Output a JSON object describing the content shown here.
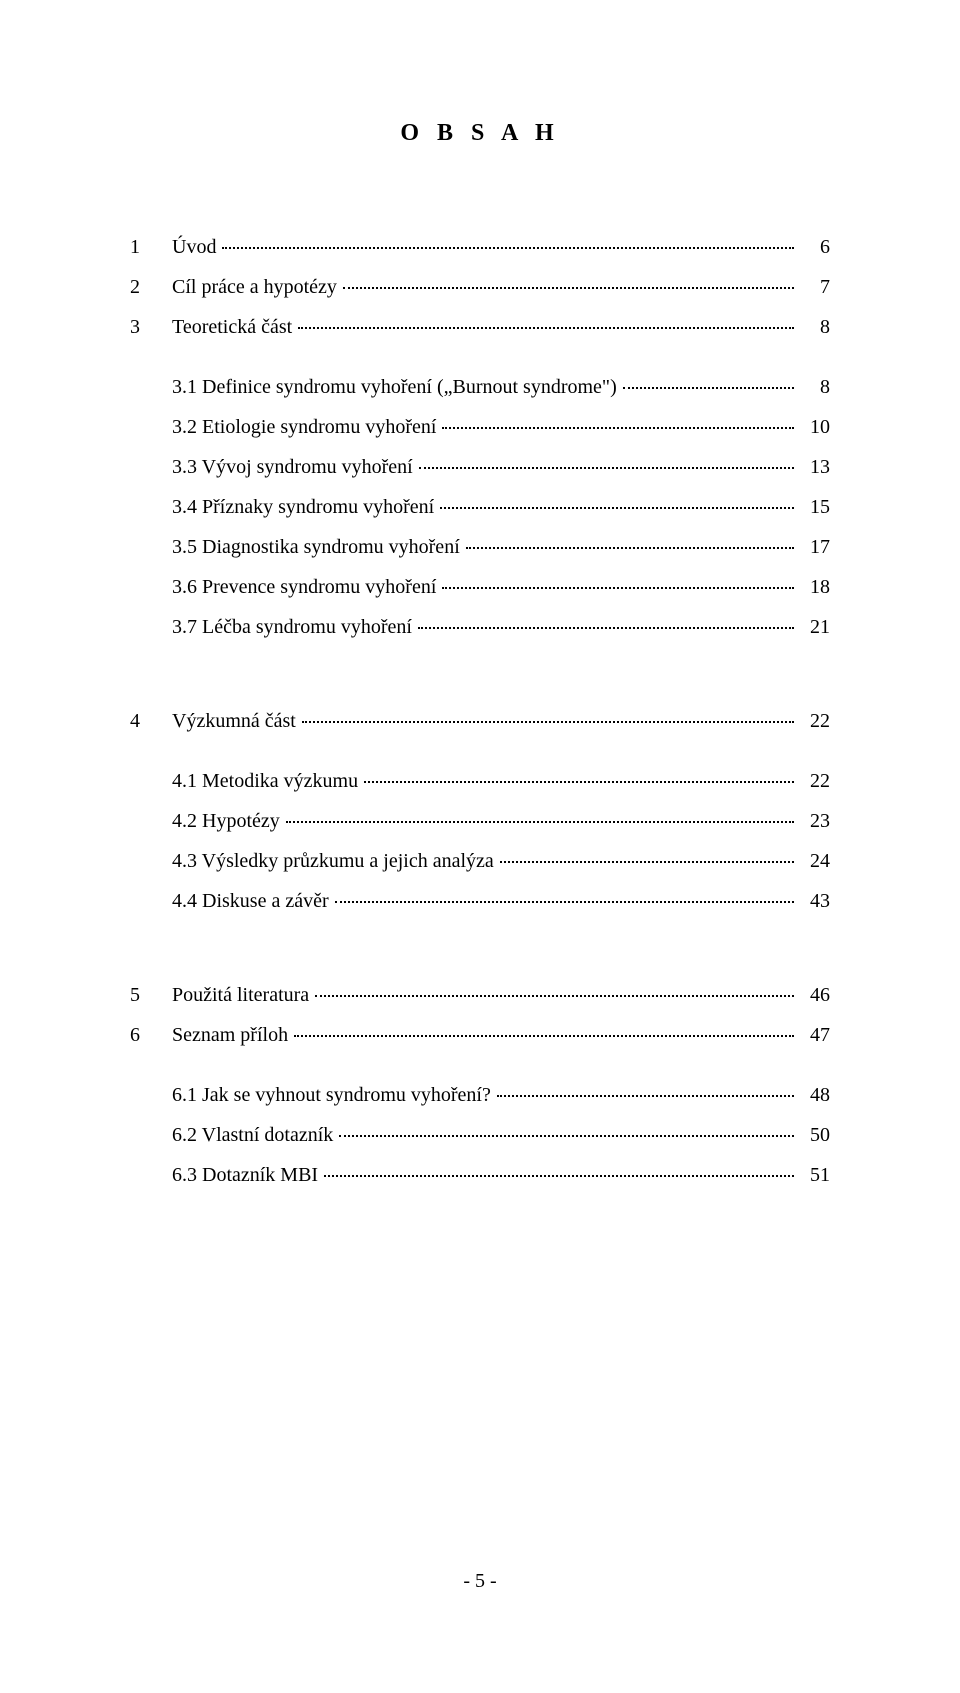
{
  "title": "O B S A H",
  "footer": "- 5 -",
  "toc": {
    "s1": {
      "num": "1",
      "label": "Úvod",
      "page": "6"
    },
    "s2": {
      "num": "2",
      "label": "Cíl práce a hypotézy",
      "page": "7"
    },
    "s3": {
      "num": "3",
      "label": "Teoretická část",
      "page": "8"
    },
    "s31": {
      "num": "",
      "label": "3.1 Definice syndromu vyhoření („Burnout syndrome\")",
      "page": "8"
    },
    "s32": {
      "num": "",
      "label": "3.2 Etiologie syndromu vyhoření",
      "page": "10"
    },
    "s33": {
      "num": "",
      "label": "3.3 Vývoj syndromu vyhoření",
      "page": "13"
    },
    "s34": {
      "num": "",
      "label": "3.4 Příznaky syndromu vyhoření",
      "page": "15"
    },
    "s35": {
      "num": "",
      "label": "3.5 Diagnostika syndromu vyhoření",
      "page": "17"
    },
    "s36": {
      "num": "",
      "label": "3.6 Prevence syndromu vyhoření",
      "page": "18"
    },
    "s37": {
      "num": "",
      "label": "3.7 Léčba syndromu vyhoření",
      "page": "21"
    },
    "s4": {
      "num": "4",
      "label": "Výzkumná část",
      "page": "22"
    },
    "s41": {
      "num": "",
      "label": "4.1 Metodika výzkumu",
      "page": "22"
    },
    "s42": {
      "num": "",
      "label": "4.2 Hypotézy",
      "page": "23"
    },
    "s43": {
      "num": "",
      "label": "4.3 Výsledky průzkumu a jejich analýza",
      "page": "24"
    },
    "s44": {
      "num": "",
      "label": "4.4 Diskuse a závěr",
      "page": "43"
    },
    "s5": {
      "num": "5",
      "label": "Použitá literatura",
      "page": "46"
    },
    "s6": {
      "num": "6",
      "label": "Seznam příloh",
      "page": "47"
    },
    "s61": {
      "num": "",
      "label": "6.1 Jak se vyhnout syndromu vyhoření?",
      "page": "48"
    },
    "s62": {
      "num": "",
      "label": "6.2 Vlastní dotazník",
      "page": "50"
    },
    "s63": {
      "num": "",
      "label": "6.3 Dotazník MBI",
      "page": "51"
    }
  }
}
